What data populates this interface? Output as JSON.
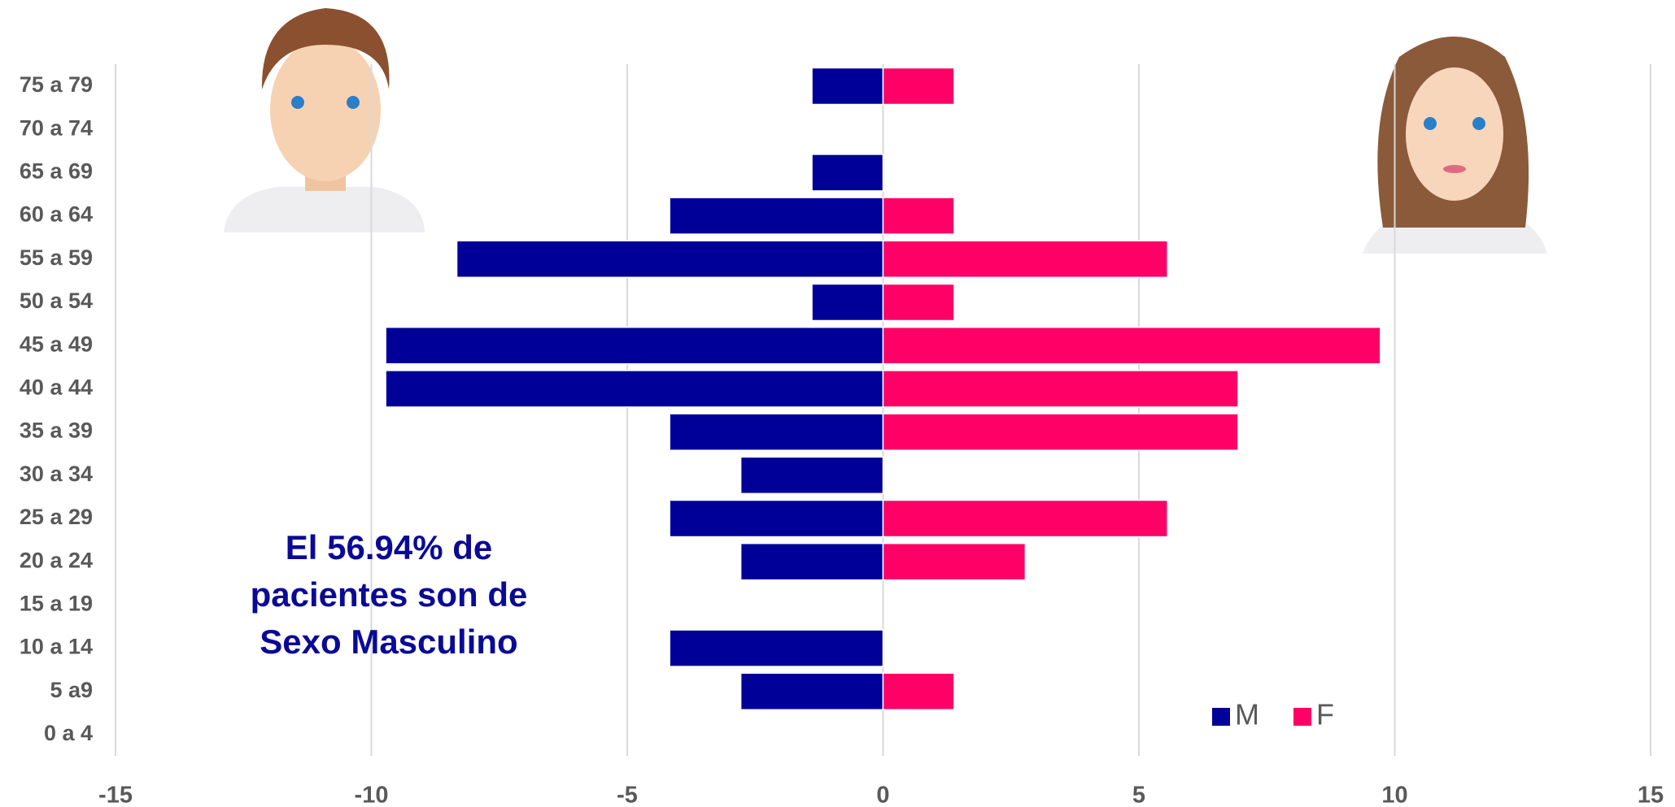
{
  "chart_data": {
    "type": "pyramid",
    "categories": [
      "75 a 79",
      "70 a 74",
      "65 a 69",
      "60 a 64",
      "55 a 59",
      "50 a 54",
      "45 a 49",
      "40 a 44",
      "35 a 39",
      "30 a 34",
      "25 a 29",
      "20 a 24",
      "15 a 19",
      "10 a 14",
      "5 a9",
      "0 a 4"
    ],
    "series": [
      {
        "name": "M",
        "color": "#000099",
        "values": [
          -1.39,
          0,
          -1.39,
          -4.17,
          -8.33,
          -1.39,
          -9.72,
          -9.72,
          -4.17,
          -2.78,
          -4.17,
          -2.78,
          0,
          -4.17,
          -2.78,
          0
        ]
      },
      {
        "name": "F",
        "color": "#ff0066",
        "values": [
          1.39,
          0,
          0,
          1.39,
          5.56,
          1.39,
          9.72,
          6.94,
          6.94,
          0,
          5.56,
          2.78,
          0,
          0,
          1.39,
          0
        ]
      }
    ],
    "xlim": [
      -15,
      15
    ],
    "xticks": [
      -15,
      -10,
      -5,
      0,
      5,
      10,
      15
    ],
    "grid": true,
    "annotation": [
      "El 56.94% de",
      "pacientes son de",
      "Sexo Masculino"
    ]
  }
}
